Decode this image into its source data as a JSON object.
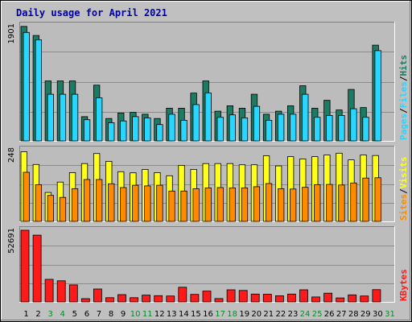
{
  "title": "Daily usage for April 2021",
  "colors": {
    "hits": "#1c7b63",
    "files": "#28d6ff",
    "visits": "#ffff1a",
    "sites": "#ff8a00",
    "kbytes": "#ff1a1a",
    "background": "#c0c0c0",
    "title": "#0000a8",
    "weekend_label": "#0b8a2c"
  },
  "chart_data": [
    {
      "type": "bar",
      "title": "Daily usage for April 2021",
      "panel": "hits-files",
      "ylabel_parts": [
        "Pages",
        "Files",
        "Hits"
      ],
      "ymax_label": "1901",
      "ylim": [
        0,
        1901
      ],
      "categories": [
        "1",
        "2",
        "3",
        "4",
        "5",
        "6",
        "7",
        "8",
        "9",
        "10",
        "11",
        "12",
        "13",
        "14",
        "15",
        "16",
        "17",
        "18",
        "19",
        "20",
        "21",
        "22",
        "23",
        "24",
        "25",
        "26",
        "27",
        "28",
        "29",
        "30",
        "31"
      ],
      "weekend_days": [
        "3",
        "4",
        "10",
        "11",
        "17",
        "18",
        "24",
        "25",
        "31"
      ],
      "series": [
        {
          "name": "Hits",
          "values": [
            1890,
            1740,
            990,
            990,
            990,
            400,
            920,
            370,
            460,
            470,
            440,
            370,
            540,
            540,
            790,
            990,
            490,
            580,
            540,
            770,
            440,
            490,
            580,
            910,
            540,
            670,
            510,
            850,
            550,
            1580,
            0
          ]
        },
        {
          "name": "Files",
          "values": [
            1790,
            1670,
            770,
            770,
            770,
            350,
            710,
            300,
            330,
            400,
            380,
            270,
            440,
            340,
            600,
            790,
            390,
            430,
            380,
            570,
            340,
            440,
            440,
            770,
            390,
            420,
            420,
            530,
            390,
            1490,
            0
          ]
        }
      ]
    },
    {
      "type": "bar",
      "panel": "visits-sites",
      "ylabel_parts": [
        "Sites",
        "Visits"
      ],
      "ymax_label": "248",
      "ylim": [
        0,
        248
      ],
      "categories": [
        "1",
        "2",
        "3",
        "4",
        "5",
        "6",
        "7",
        "8",
        "9",
        "10",
        "11",
        "12",
        "13",
        "14",
        "15",
        "16",
        "17",
        "18",
        "19",
        "20",
        "21",
        "22",
        "23",
        "24",
        "25",
        "26",
        "27",
        "28",
        "29",
        "30",
        "31"
      ],
      "series": [
        {
          "name": "Visits",
          "values": [
            241,
            197,
            100,
            136,
            169,
            200,
            235,
            208,
            172,
            168,
            180,
            169,
            158,
            194,
            180,
            200,
            200,
            200,
            196,
            196,
            227,
            192,
            224,
            216,
            224,
            230,
            236,
            213,
            230,
            228,
            0
          ]
        },
        {
          "name": "Sites",
          "values": [
            170,
            127,
            90,
            83,
            113,
            145,
            145,
            130,
            117,
            125,
            123,
            125,
            105,
            105,
            113,
            116,
            117,
            116,
            116,
            120,
            131,
            113,
            112,
            118,
            127,
            128,
            126,
            133,
            150,
            151,
            0
          ]
        }
      ]
    },
    {
      "type": "bar",
      "panel": "kbytes",
      "ylabel_parts": [
        "KBytes"
      ],
      "ymax_label": "52691",
      "ylim": [
        0,
        52691
      ],
      "categories": [
        "1",
        "2",
        "3",
        "4",
        "5",
        "6",
        "7",
        "8",
        "9",
        "10",
        "11",
        "12",
        "13",
        "14",
        "15",
        "16",
        "17",
        "18",
        "19",
        "20",
        "21",
        "22",
        "23",
        "24",
        "25",
        "26",
        "27",
        "28",
        "29",
        "30",
        "31"
      ],
      "series": [
        {
          "name": "KBytes",
          "values": [
            52691,
            49100,
            16600,
            15500,
            12500,
            2350,
            9500,
            3080,
            5300,
            3050,
            5000,
            4550,
            4320,
            10800,
            5520,
            7930,
            2450,
            8900,
            8400,
            5750,
            5630,
            4520,
            5750,
            8880,
            3640,
            6400,
            2880,
            5150,
            4320,
            9000,
            0
          ]
        }
      ]
    }
  ]
}
